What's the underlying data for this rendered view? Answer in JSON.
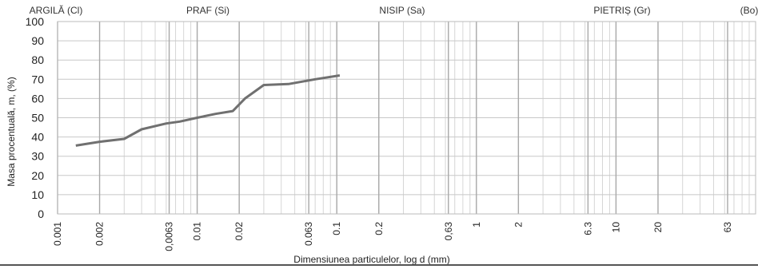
{
  "chart_data": {
    "type": "line",
    "title": "",
    "xlabel": "Dimensiunea particulelor, log d (mm)",
    "ylabel": "Masa procentuală, m, (%)",
    "xscale": "log",
    "xlim": [
      0.001,
      100
    ],
    "ylim": [
      0,
      100
    ],
    "grid": true,
    "zones": [
      {
        "label": "ARGILĂ (Cl)"
      },
      {
        "label": "PRAF (Si)"
      },
      {
        "label": "NISIP (Sa)"
      },
      {
        "label": "PIETRIȘ (Gr)"
      },
      {
        "label": "(Bo)"
      }
    ],
    "y_ticks": [
      "100",
      "90",
      "80",
      "70",
      "60",
      "50",
      "40",
      "30",
      "20",
      "10",
      "0"
    ],
    "x_ticks": [
      {
        "label": "0.001",
        "value": 0.001
      },
      {
        "label": "0.002",
        "value": 0.002
      },
      {
        "label": "0,0063",
        "value": 0.0063
      },
      {
        "label": "0.01",
        "value": 0.01
      },
      {
        "label": "0.02",
        "value": 0.02
      },
      {
        "label": "0.063",
        "value": 0.063
      },
      {
        "label": "0.1",
        "value": 0.1
      },
      {
        "label": "0.2",
        "value": 0.2
      },
      {
        "label": "0,63",
        "value": 0.63
      },
      {
        "label": "1",
        "value": 1
      },
      {
        "label": "2",
        "value": 2
      },
      {
        "label": "6.3",
        "value": 6.3
      },
      {
        "label": "10",
        "value": 10
      },
      {
        "label": "20",
        "value": 20
      },
      {
        "label": "63",
        "value": 63
      }
    ],
    "series": [
      {
        "color": "#707070",
        "x": [
          0.00135,
          0.002,
          0.003,
          0.004,
          0.006,
          0.0075,
          0.01,
          0.0135,
          0.018,
          0.022,
          0.03,
          0.045,
          0.07,
          0.105
        ],
        "y": [
          35.5,
          37.5,
          39,
          44,
          47,
          48,
          50,
          52,
          53.5,
          60,
          67,
          67.5,
          70,
          72
        ]
      }
    ]
  }
}
